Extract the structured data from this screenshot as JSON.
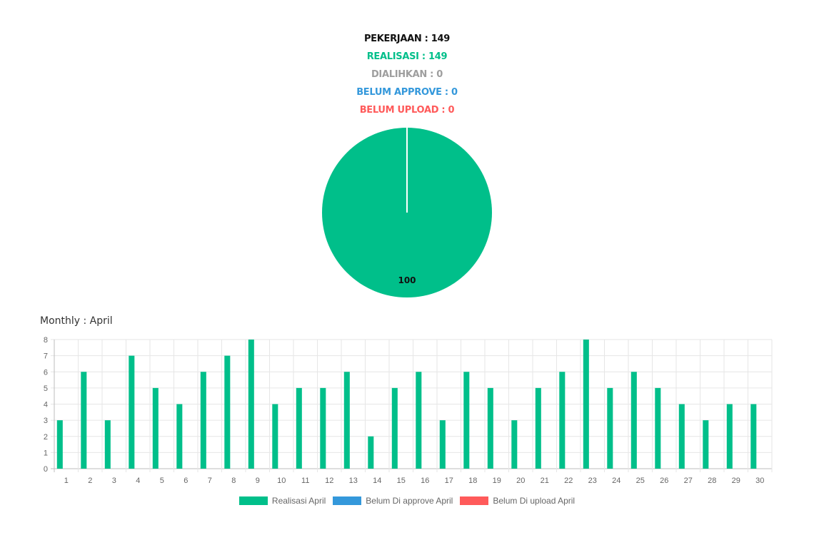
{
  "summary": {
    "pekerjaan": "PEKERJAAN : 149",
    "realisasi": "REALISASI : 149",
    "dialihkan": "DIALIHKAN : 0",
    "belum_approve": "BELUM APPROVE : 0",
    "belum_upload": "BELUM UPLOAD : 0"
  },
  "colors": {
    "pekerjaan": "#111111",
    "realisasi": "#00bf8a",
    "dialihkan": "#9e9e9e",
    "belum_approve": "#3498db",
    "belum_upload": "#ff5a5a"
  },
  "monthly_title": "Monthly : April",
  "chart_data": [
    {
      "type": "pie",
      "slices": [
        {
          "value": 100,
          "color": "#00bf8a",
          "label": "100"
        }
      ]
    },
    {
      "type": "bar",
      "categories": [
        "1",
        "2",
        "3",
        "4",
        "5",
        "6",
        "7",
        "8",
        "9",
        "10",
        "11",
        "12",
        "13",
        "14",
        "15",
        "16",
        "17",
        "18",
        "19",
        "20",
        "21",
        "22",
        "23",
        "24",
        "25",
        "26",
        "27",
        "28",
        "29",
        "30"
      ],
      "series": [
        {
          "name": "Realisasi April",
          "color": "#00bf8a",
          "values": [
            3,
            6,
            3,
            7,
            5,
            4,
            6,
            7,
            8,
            4,
            5,
            5,
            6,
            2,
            5,
            6,
            3,
            6,
            5,
            3,
            5,
            6,
            8,
            5,
            6,
            5,
            4,
            3,
            4,
            4
          ]
        },
        {
          "name": "Belum Di approve April",
          "color": "#3498db",
          "values": [
            0,
            0,
            0,
            0,
            0,
            0,
            0,
            0,
            0,
            0,
            0,
            0,
            0,
            0,
            0,
            0,
            0,
            0,
            0,
            0,
            0,
            0,
            0,
            0,
            0,
            0,
            0,
            0,
            0,
            0
          ]
        },
        {
          "name": "Belum Di upload April",
          "color": "#ff5a5a",
          "values": [
            0,
            0,
            0,
            0,
            0,
            0,
            0,
            0,
            0,
            0,
            0,
            0,
            0,
            0,
            0,
            0,
            0,
            0,
            0,
            0,
            0,
            0,
            0,
            0,
            0,
            0,
            0,
            0,
            0,
            0
          ]
        }
      ],
      "ylim": [
        0,
        8
      ],
      "yticks": [
        "0",
        "1",
        "2",
        "3",
        "4",
        "5",
        "6",
        "7",
        "8"
      ],
      "grid": true,
      "legend": "bottom"
    }
  ]
}
